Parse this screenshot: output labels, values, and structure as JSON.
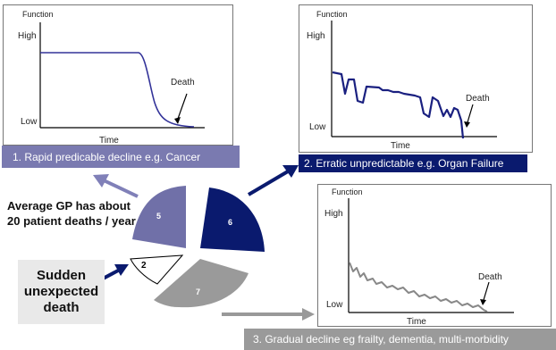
{
  "panel1": {
    "y_label": "Function",
    "high": "High",
    "low": "Low",
    "x_label": "Time",
    "death": "Death",
    "caption": "1. Rapid predicable decline e.g. Cancer"
  },
  "panel2": {
    "y_label": "Function",
    "high": "High",
    "low": "Low",
    "x_label": "Time",
    "death": "Death",
    "caption": "2. Erratic unpredictable e.g. Organ Failure"
  },
  "panel3": {
    "y_label": "Function",
    "high": "High",
    "low": "Low",
    "x_label": "Time",
    "death": "Death",
    "caption": "3. Gradual decline  eg frailty, dementia, multi-morbidity"
  },
  "pie": {
    "segments": [
      {
        "label": "5",
        "color": "#7070a8"
      },
      {
        "label": "6",
        "color": "#0a1a6e"
      },
      {
        "label": "7",
        "color": "#9a9a9a"
      },
      {
        "label": "2",
        "color": "#ffffff"
      }
    ]
  },
  "avg_text": "Average GP has about 20 patient deaths / year",
  "sudden": {
    "line1": "Sudden",
    "line2": "unexpected",
    "line3": "death"
  },
  "colors": {
    "panel1_curve": "#333399",
    "panel2_curve": "#1a2080",
    "panel3_curve": "#888888",
    "arrow_blue": "#0a1a6e",
    "arrow_light": "#8080b8",
    "arrow_grey": "#999999"
  }
}
